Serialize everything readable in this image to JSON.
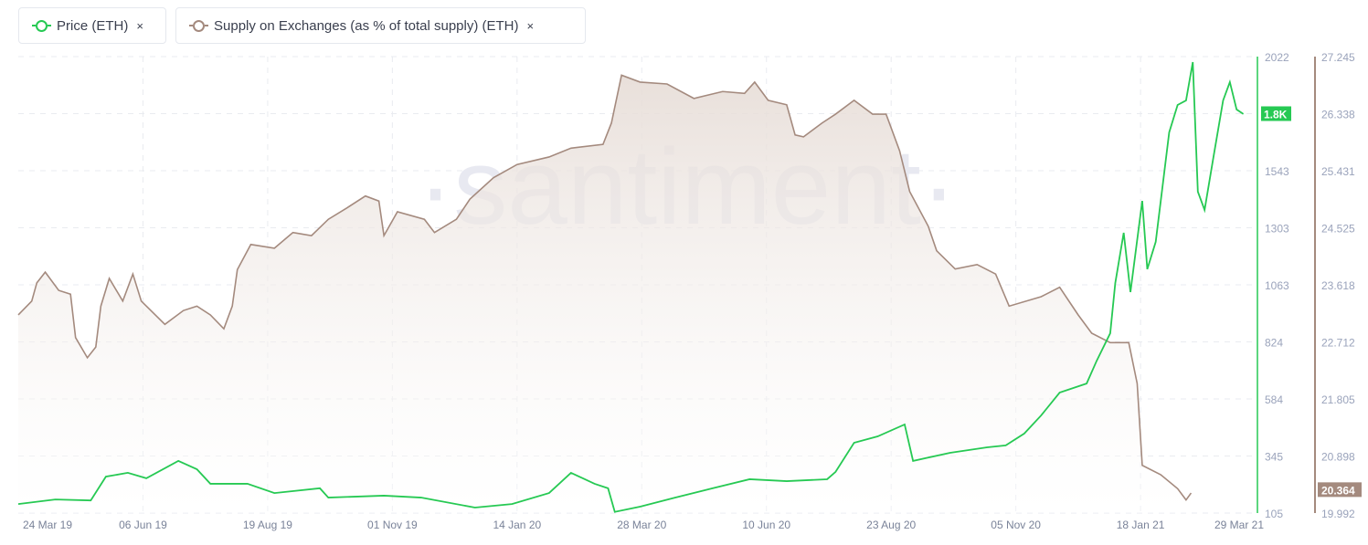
{
  "legend": [
    {
      "label": "Price (ETH)",
      "color": "#26c953",
      "close": "×"
    },
    {
      "label": "Supply on Exchanges (as % of total supply) (ETH)",
      "color": "#a48a7e",
      "close": "×"
    }
  ],
  "watermark": "·santiment·",
  "chart_data": {
    "type": "line",
    "x_ticks": [
      "24 Mar 19",
      "06 Jun 19",
      "19 Aug 19",
      "01 Nov 19",
      "14 Jan 20",
      "28 Mar 20",
      "10 Jun 20",
      "23 Aug 20",
      "05 Nov 20",
      "18 Jan 21",
      "29 Mar 21"
    ],
    "grid": true,
    "series": [
      {
        "name": "Price (ETH)",
        "axis": "left",
        "color": "#26c953",
        "ylim": [
          105,
          2022
        ],
        "y_ticks": [
          "2022",
          "1.8K",
          "1543",
          "1303",
          "1063",
          "824",
          "584",
          "345",
          "105"
        ],
        "last_value_label": "1.8K",
        "points": [
          [
            "2019-03-24",
            143
          ],
          [
            "2019-04-15",
            162
          ],
          [
            "2019-05-06",
            158
          ],
          [
            "2019-05-15",
            258
          ],
          [
            "2019-05-28",
            274
          ],
          [
            "2019-06-08",
            251
          ],
          [
            "2019-06-27",
            324
          ],
          [
            "2019-07-08",
            289
          ],
          [
            "2019-07-16",
            228
          ],
          [
            "2019-08-07",
            228
          ],
          [
            "2019-08-23",
            189
          ],
          [
            "2019-09-19",
            209
          ],
          [
            "2019-09-24",
            170
          ],
          [
            "2019-10-27",
            178
          ],
          [
            "2019-11-18",
            170
          ],
          [
            "2019-12-20",
            128
          ],
          [
            "2020-01-11",
            143
          ],
          [
            "2020-02-02",
            189
          ],
          [
            "2020-02-15",
            274
          ],
          [
            "2020-02-29",
            228
          ],
          [
            "2020-03-08",
            209
          ],
          [
            "2020-03-12",
            110
          ],
          [
            "2020-03-27",
            132
          ],
          [
            "2020-04-17",
            170
          ],
          [
            "2020-05-09",
            209
          ],
          [
            "2020-05-31",
            247
          ],
          [
            "2020-06-22",
            239
          ],
          [
            "2020-07-16",
            247
          ],
          [
            "2020-07-21",
            278
          ],
          [
            "2020-08-01",
            400
          ],
          [
            "2020-08-15",
            427
          ],
          [
            "2020-08-31",
            477
          ],
          [
            "2020-09-05",
            324
          ],
          [
            "2020-09-27",
            358
          ],
          [
            "2020-10-19",
            381
          ],
          [
            "2020-10-30",
            389
          ],
          [
            "2020-11-10",
            439
          ],
          [
            "2020-11-20",
            515
          ],
          [
            "2020-12-01",
            611
          ],
          [
            "2020-12-17",
            649
          ],
          [
            "2020-12-23",
            745
          ],
          [
            "2020-12-31",
            860
          ],
          [
            "2021-01-03",
            1071
          ],
          [
            "2021-01-08",
            1282
          ],
          [
            "2021-01-12",
            1033
          ],
          [
            "2021-01-19",
            1416
          ],
          [
            "2021-01-22",
            1129
          ],
          [
            "2021-01-27",
            1244
          ],
          [
            "2021-02-04",
            1704
          ],
          [
            "2021-02-09",
            1819
          ],
          [
            "2021-02-14",
            1838
          ],
          [
            "2021-02-18",
            1999
          ],
          [
            "2021-02-21",
            1455
          ],
          [
            "2021-02-25",
            1378
          ],
          [
            "2021-03-02",
            1589
          ],
          [
            "2021-03-08",
            1838
          ],
          [
            "2021-03-12",
            1915
          ],
          [
            "2021-03-16",
            1800
          ],
          [
            "2021-03-20",
            1781
          ]
        ]
      },
      {
        "name": "Supply on Exchanges (as % of total supply) (ETH)",
        "axis": "right",
        "color": "#a48a7e",
        "ylim": [
          19.992,
          27.245
        ],
        "y_ticks": [
          "27.245",
          "26.338",
          "25.431",
          "24.525",
          "23.618",
          "22.712",
          "21.805",
          "20.898",
          "19.992"
        ],
        "last_value_label": "20.364",
        "points": [
          [
            "2019-03-24",
            23.14
          ],
          [
            "2019-04-01",
            23.36
          ],
          [
            "2019-04-04",
            23.65
          ],
          [
            "2019-04-09",
            23.82
          ],
          [
            "2019-04-17",
            23.53
          ],
          [
            "2019-04-24",
            23.47
          ],
          [
            "2019-04-27",
            22.78
          ],
          [
            "2019-05-04",
            22.46
          ],
          [
            "2019-05-09",
            22.63
          ],
          [
            "2019-05-12",
            23.28
          ],
          [
            "2019-05-17",
            23.72
          ],
          [
            "2019-05-25",
            23.36
          ],
          [
            "2019-05-31",
            23.79
          ],
          [
            "2019-06-05",
            23.36
          ],
          [
            "2019-06-19",
            22.99
          ],
          [
            "2019-06-30",
            23.21
          ],
          [
            "2019-07-08",
            23.28
          ],
          [
            "2019-07-16",
            23.14
          ],
          [
            "2019-07-24",
            22.92
          ],
          [
            "2019-07-29",
            23.28
          ],
          [
            "2019-08-01",
            23.86
          ],
          [
            "2019-08-09",
            24.26
          ],
          [
            "2019-08-23",
            24.2
          ],
          [
            "2019-09-03",
            24.45
          ],
          [
            "2019-09-14",
            24.4
          ],
          [
            "2019-09-24",
            24.66
          ],
          [
            "2019-10-05",
            24.84
          ],
          [
            "2019-10-16",
            25.03
          ],
          [
            "2019-10-24",
            24.95
          ],
          [
            "2019-10-27",
            24.4
          ],
          [
            "2019-11-04",
            24.78
          ],
          [
            "2019-11-20",
            24.66
          ],
          [
            "2019-11-26",
            24.45
          ],
          [
            "2019-12-09",
            24.66
          ],
          [
            "2019-12-17",
            24.98
          ],
          [
            "2019-12-31",
            25.32
          ],
          [
            "2020-01-14",
            25.53
          ],
          [
            "2020-02-02",
            25.65
          ],
          [
            "2020-02-15",
            25.79
          ],
          [
            "2020-03-05",
            25.85
          ],
          [
            "2020-03-10",
            26.19
          ],
          [
            "2020-03-16",
            26.95
          ],
          [
            "2020-03-27",
            26.84
          ],
          [
            "2020-04-12",
            26.81
          ],
          [
            "2020-04-28",
            26.58
          ],
          [
            "2020-05-15",
            26.69
          ],
          [
            "2020-05-28",
            26.66
          ],
          [
            "2020-06-03",
            26.84
          ],
          [
            "2020-06-11",
            26.55
          ],
          [
            "2020-06-22",
            26.48
          ],
          [
            "2020-06-27",
            26.0
          ],
          [
            "2020-07-02",
            25.97
          ],
          [
            "2020-07-13",
            26.19
          ],
          [
            "2020-07-21",
            26.33
          ],
          [
            "2020-08-01",
            26.55
          ],
          [
            "2020-08-12",
            26.33
          ],
          [
            "2020-08-20",
            26.33
          ],
          [
            "2020-08-28",
            25.75
          ],
          [
            "2020-09-03",
            25.1
          ],
          [
            "2020-09-14",
            24.55
          ],
          [
            "2020-09-19",
            24.16
          ],
          [
            "2020-09-30",
            23.87
          ],
          [
            "2020-10-13",
            23.94
          ],
          [
            "2020-10-24",
            23.79
          ],
          [
            "2020-11-01",
            23.28
          ],
          [
            "2020-11-20",
            23.43
          ],
          [
            "2020-12-01",
            23.58
          ],
          [
            "2020-12-12",
            23.14
          ],
          [
            "2020-12-20",
            22.85
          ],
          [
            "2020-12-31",
            22.7
          ],
          [
            "2021-01-11",
            22.7
          ],
          [
            "2021-01-16",
            22.05
          ],
          [
            "2021-01-19",
            20.75
          ],
          [
            "2021-01-30",
            20.6
          ],
          [
            "2021-02-09",
            20.38
          ],
          [
            "2021-02-14",
            20.2
          ],
          [
            "2021-02-17",
            20.31
          ]
        ]
      }
    ]
  }
}
